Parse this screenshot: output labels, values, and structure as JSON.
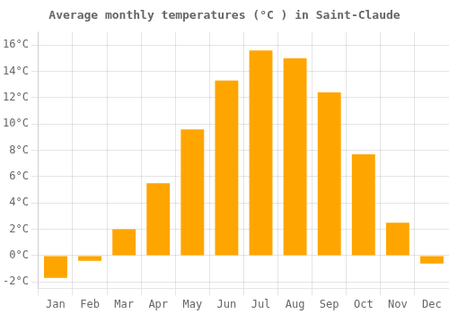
{
  "chart_data": {
    "type": "bar",
    "title": "Average monthly temperatures (°C ) in Saint-Claude",
    "categories": [
      "Jan",
      "Feb",
      "Mar",
      "Apr",
      "May",
      "Jun",
      "Jul",
      "Aug",
      "Sep",
      "Oct",
      "Nov",
      "Dec"
    ],
    "values": [
      -1.7,
      -0.4,
      2.0,
      5.5,
      9.6,
      13.3,
      15.6,
      15.0,
      12.4,
      7.7,
      2.5,
      -0.6
    ],
    "color": "#FFA500",
    "ylim": [
      -2.5,
      17.0
    ],
    "yticks": [
      {
        "value": -2,
        "label": "-2°C"
      },
      {
        "value": 0,
        "label": "0°C"
      },
      {
        "value": 2,
        "label": "2°C"
      },
      {
        "value": 4,
        "label": "4°C"
      },
      {
        "value": 6,
        "label": "6°C"
      },
      {
        "value": 8,
        "label": "8°C"
      },
      {
        "value": 10,
        "label": "10°C"
      },
      {
        "value": 12,
        "label": "12°C"
      },
      {
        "value": 14,
        "label": "14°C"
      },
      {
        "value": 16,
        "label": "16°C"
      }
    ],
    "grid": true
  }
}
